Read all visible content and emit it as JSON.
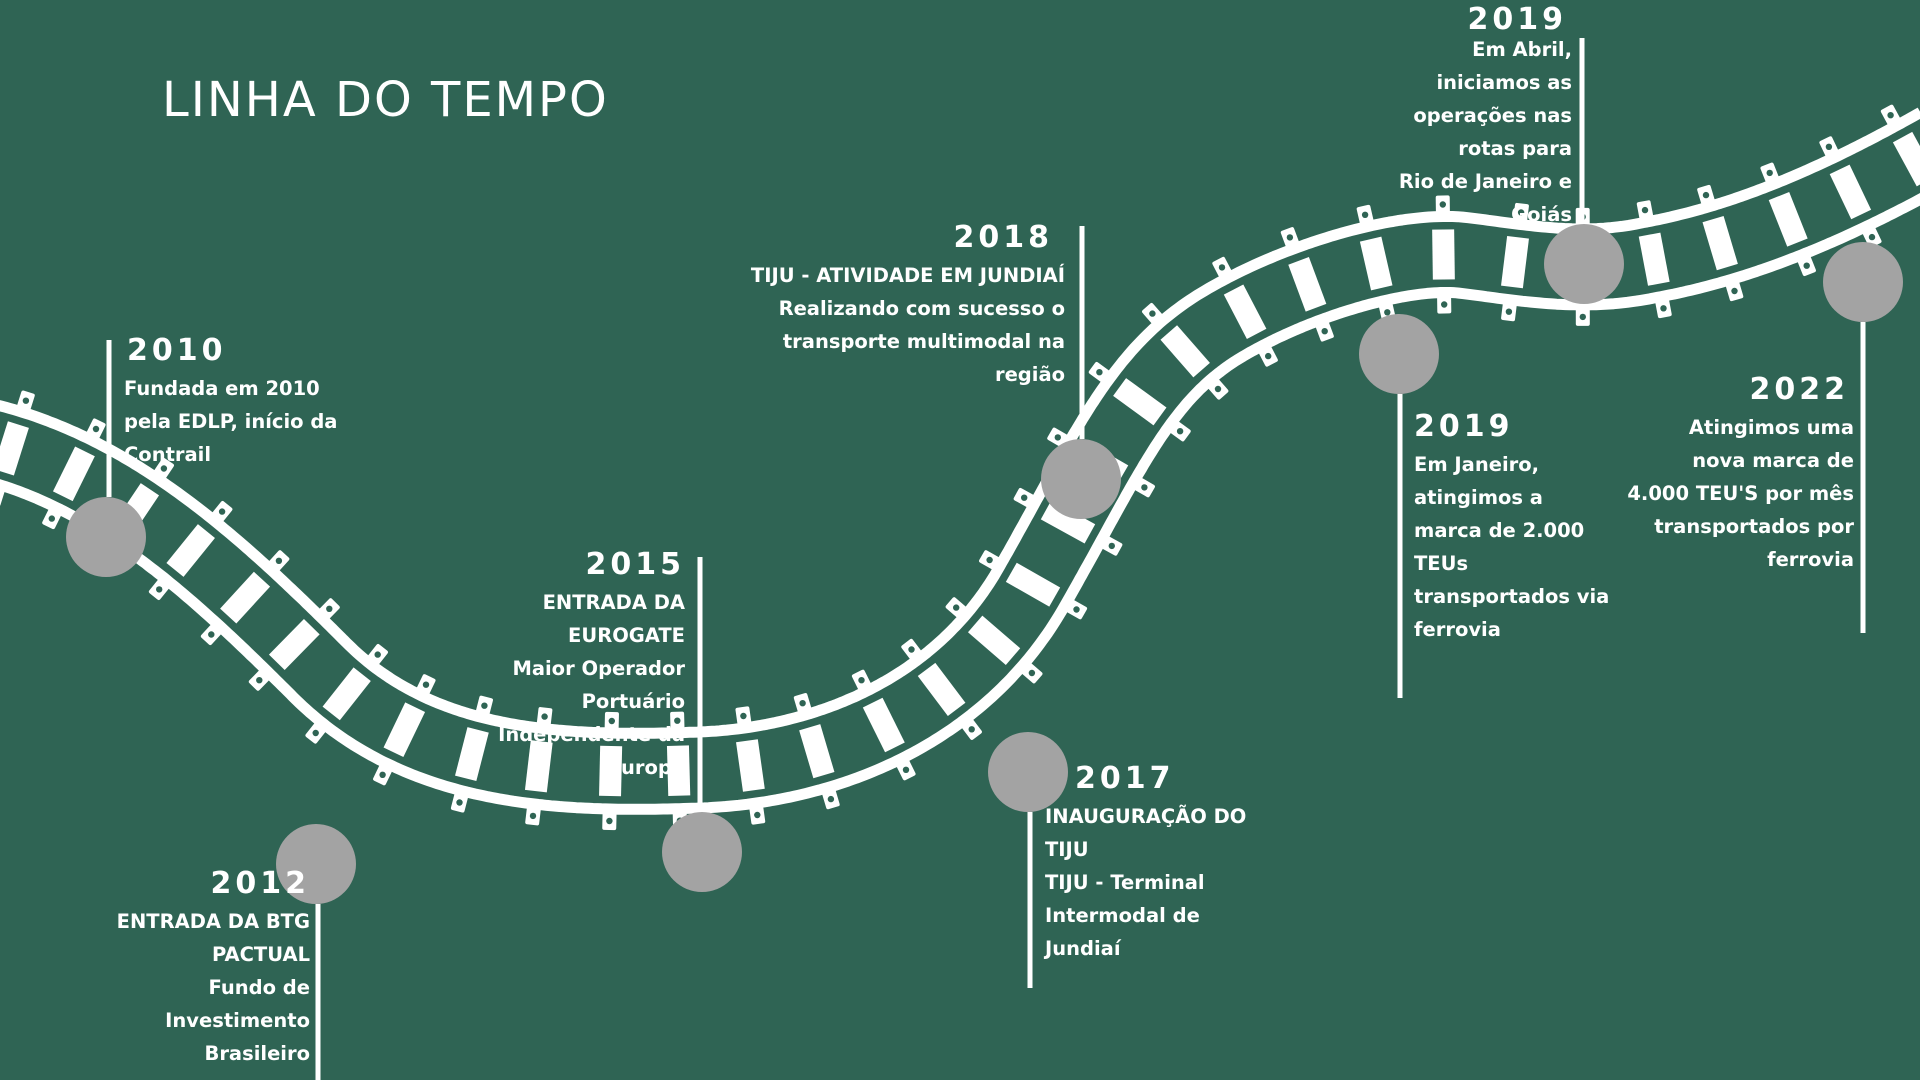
{
  "title": "LINHA DO TEMPO",
  "colors": {
    "background": "#2f6454",
    "rail": "#ffffff",
    "node": "#a3a3a3",
    "text": "#ffffff"
  },
  "events": [
    {
      "year": "2010",
      "lines": [
        "Fundada em 2010",
        "pela EDLP, início da",
        "Contrail"
      ]
    },
    {
      "year": "2012",
      "lines": [
        "ENTRADA DA BTG",
        "PACTUAL",
        "Fundo de",
        "Investimento",
        "Brasileiro"
      ]
    },
    {
      "year": "2015",
      "lines": [
        "ENTRADA DA",
        "EUROGATE",
        "Maior Operador",
        "Portuário",
        "Independente da",
        "Europa"
      ]
    },
    {
      "year": "2017",
      "lines": [
        "INAUGURAÇÃO DO",
        "TIJU",
        "TIJU - Terminal",
        "Intermodal de",
        "Jundiaí"
      ]
    },
    {
      "year": "2018",
      "lines": [
        "TIJU - ATIVIDADE EM JUNDIAÍ",
        "Realizando com sucesso o",
        "transporte multimodal na",
        "região"
      ]
    },
    {
      "year": "2019",
      "lines": [
        "Em Janeiro,",
        "atingimos a",
        "marca de 2.000",
        "TEUs",
        "transportados via",
        "ferrovia"
      ]
    },
    {
      "year": "2019",
      "lines": [
        "Em Abril,",
        "iniciamos as",
        "operações nas",
        "rotas para",
        "Rio de Janeiro e",
        "Goiás"
      ]
    },
    {
      "year": "2022",
      "lines": [
        "Atingimos uma",
        "nova marca de",
        "4.000 TEU'S por mês",
        "transportados por",
        "ferrovia"
      ]
    }
  ]
}
